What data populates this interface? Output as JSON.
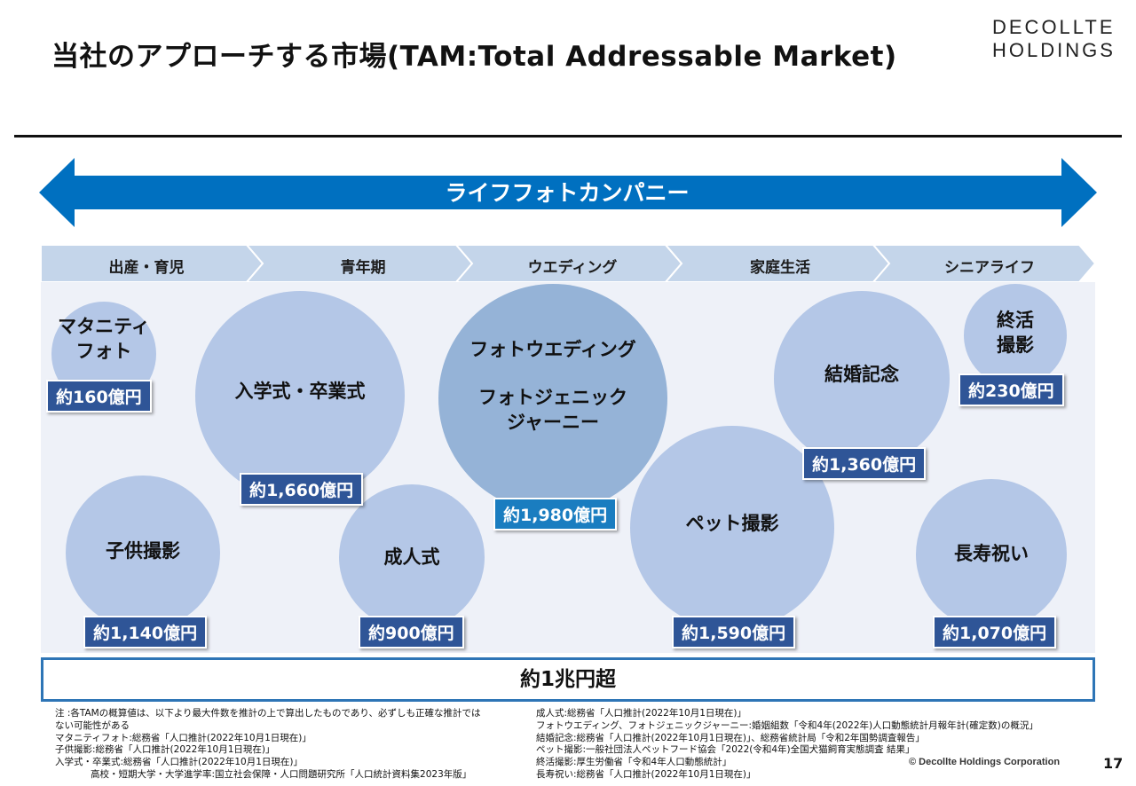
{
  "header": {
    "title": "当社のアプローチする市場(TAM:Total Addressable Market)",
    "logo_line1": "DECOLLTE",
    "logo_line2": "HOLDINGS"
  },
  "arrow": {
    "label": "ライフフォトカンパニー",
    "color": "#0070c0"
  },
  "stages": [
    "出産・育児",
    "青年期",
    "ウエディング",
    "家庭生活",
    "シニアライフ"
  ],
  "markets": {
    "maternity": {
      "name_line1": "マタニティ",
      "name_line2": "フォト",
      "value": "約160億円"
    },
    "entrance": {
      "name": "入学式・卒業式",
      "value": "約1,660億円"
    },
    "wedding": {
      "name_line1": "フォトウエディング",
      "name_line2": "フォトジェニック",
      "name_line3": "ジャーニー",
      "value": "約1,980億円"
    },
    "anniversary": {
      "name": "結婚記念",
      "value": "約1,360億円"
    },
    "shukatsu": {
      "name_line1": "終活",
      "name_line2": "撮影",
      "value": "約230億円"
    },
    "children": {
      "name": "子供撮影",
      "value": "約1,140億円"
    },
    "adult": {
      "name": "成人式",
      "value": "約900億円"
    },
    "pet": {
      "name": "ペット撮影",
      "value": "約1,590億円"
    },
    "longevity": {
      "name": "長寿祝い",
      "value": "約1,070億円"
    }
  },
  "total": "約1兆円超",
  "notes_left": [
    "注 :各TAMの概算値は、以下より最大件数を推計の上で算出したものであり、必ずしも正確な推計では",
    "ない可能性がある",
    "マタニティフォト:総務省「人口推計(2022年10月1日現在)」",
    "子供撮影:総務省「人口推計(2022年10月1日現在)」",
    "入学式・卒業式:総務省「人口推計(2022年10月1日現在)」",
    "高校・短期大学・大学進学率:国立社会保障・人口問題研究所「人口統計資料集2023年版」"
  ],
  "notes_right": [
    "成人式:総務省「人口推計(2022年10月1日現在)」",
    "フォトウエディング、フォトジェニックジャーニー:婚姻組数「令和4年(2022年)人口動態統計月報年計(確定数)の概況」",
    "結婚記念:総務省「人口推計(2022年10月1日現在)」、総務省統計局「令和2年国勢調査報告」",
    "ペット撮影:一般社団法人ペットフード協会「2022(令和4年)全国犬猫飼育実態調査 結果」",
    "終活撮影:厚生労働省「令和4年人口動態統計」",
    "長寿祝い:総務省「人口推計(2022年10月1日現在)」"
  ],
  "footer": {
    "copyright": "© Decollte Holdings Corporation",
    "page_number": "17"
  }
}
